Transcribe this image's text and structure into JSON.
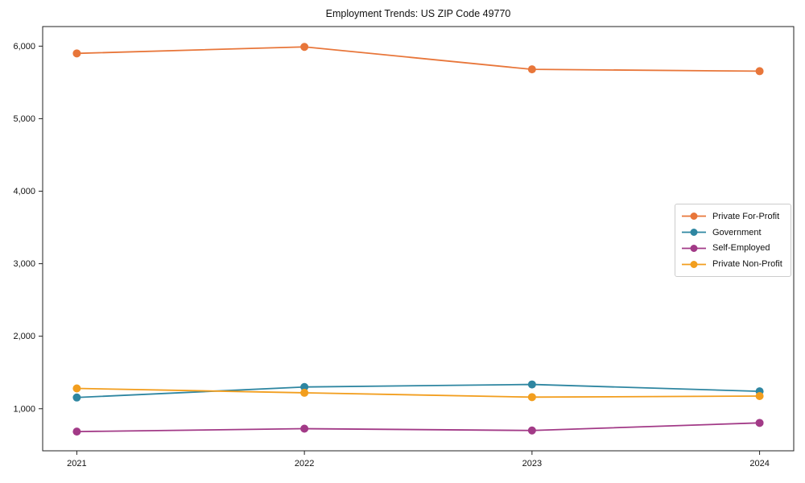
{
  "title": "Employment Trends: US ZIP Code 49770",
  "chart_data": {
    "type": "line",
    "title": "Employment Trends: US ZIP Code 49770",
    "x": [
      2021,
      2022,
      2023,
      2024
    ],
    "xticks": [
      2021,
      2022,
      2023,
      2024
    ],
    "yticks": [
      1000,
      2000,
      3000,
      4000,
      5000,
      6000
    ],
    "xlim": [
      2020.85,
      2024.15
    ],
    "ylim": [
      420,
      6270
    ],
    "grid": false,
    "legend_position": "center-right",
    "series": [
      {
        "name": "Private For-Profit",
        "color": "#e8763a",
        "values": [
          5900,
          5990,
          5680,
          5655
        ]
      },
      {
        "name": "Government",
        "color": "#2e86a1",
        "values": [
          1155,
          1300,
          1335,
          1240
        ]
      },
      {
        "name": "Self-Employed",
        "color": "#a23a87",
        "values": [
          685,
          725,
          700,
          805
        ]
      },
      {
        "name": "Private Non-Profit",
        "color": "#f29e1e",
        "values": [
          1280,
          1220,
          1160,
          1175
        ]
      }
    ]
  }
}
